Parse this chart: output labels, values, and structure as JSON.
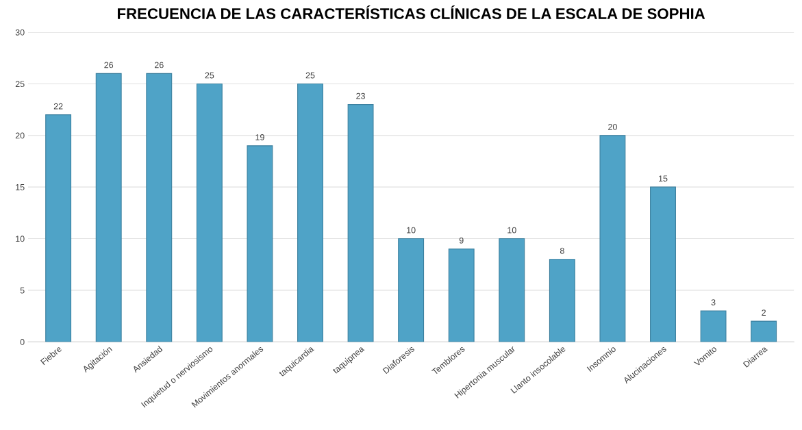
{
  "chart_data": {
    "type": "bar",
    "title": "FRECUENCIA DE LAS CARACTERÍSTICAS CLÍNICAS DE LA ESCALA DE SOPHIA",
    "categories": [
      "Fiebre",
      "Agitación",
      "Ansiedad",
      "Inquietud o nerviosismo",
      "Movimientos anormales",
      "taquicardia",
      "taquipnea",
      "Diaforesis",
      "Temblores",
      "Hipertonia muscular",
      "Llanto insocolable",
      "Insomnio",
      "Alucinaciones",
      "Vomito",
      "Diarrea"
    ],
    "values": [
      22,
      26,
      26,
      25,
      19,
      25,
      23,
      10,
      9,
      10,
      8,
      20,
      15,
      3,
      2
    ],
    "color": "#4fa3c7",
    "ylim": [
      0,
      30
    ],
    "yticks": [
      0,
      5,
      10,
      15,
      20,
      25,
      30
    ],
    "grid": "y",
    "data_labels": true
  }
}
